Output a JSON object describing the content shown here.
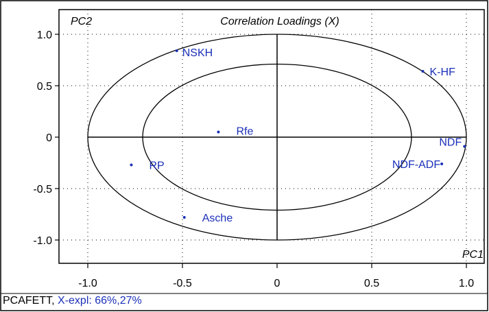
{
  "chart_data": {
    "type": "scatter",
    "title": "Correlation Loadings (X)",
    "xlabel": "PC1",
    "ylabel": "PC2",
    "xlim": [
      -1.2,
      1.0
    ],
    "ylim": [
      -1.08,
      1.1
    ],
    "x_ticks": [
      "-1.0",
      "-0.5",
      "0",
      "0.5",
      "1.0"
    ],
    "y_ticks": [
      "1.0",
      "0.5",
      "0",
      "-0.5",
      "-1.0"
    ],
    "ellipses": [
      {
        "label": "outer",
        "radius": 1.0
      },
      {
        "label": "inner",
        "radius": 0.71
      }
    ],
    "points": [
      {
        "label": "NSKH",
        "x": -0.53,
        "y": 0.84
      },
      {
        "label": "K-HF",
        "x": 0.77,
        "y": 0.64
      },
      {
        "label": "Rfe",
        "x": -0.31,
        "y": 0.05
      },
      {
        "label": "NDF",
        "x": 0.99,
        "y": -0.09
      },
      {
        "label": "RP",
        "x": -0.77,
        "y": -0.27
      },
      {
        "label": "NDF-ADF",
        "x": 0.87,
        "y": -0.26
      },
      {
        "label": "Asche",
        "x": -0.49,
        "y": -0.78
      }
    ],
    "colors": {
      "points": "#1a2fb8",
      "lines": "#000000",
      "grid": "#000000"
    }
  },
  "status": {
    "dataset": "PCAFETT,",
    "explained": "X-expl: 66%,27%"
  }
}
